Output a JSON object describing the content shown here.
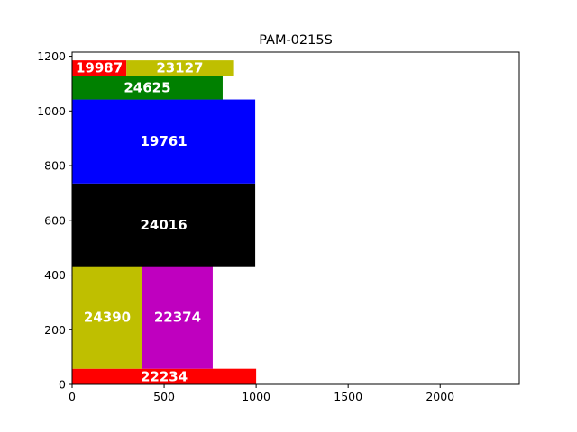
{
  "chart_data": {
    "type": "bar",
    "layout": "rectangle-packing",
    "title": "PAM-0215S",
    "xlabel": "",
    "ylabel": "",
    "xlim": [
      0,
      2430
    ],
    "ylim": [
      0,
      1215
    ],
    "x_ticks": [
      "0",
      "500",
      "1000",
      "1500",
      "2000"
    ],
    "y_ticks": [
      "0",
      "200",
      "400",
      "600",
      "800",
      "1000",
      "1200"
    ],
    "grid": false,
    "legend": "none",
    "rects": [
      {
        "label": "22234",
        "x": 0,
        "y": 0,
        "width": 1000,
        "height": 57,
        "color": "#ff0000"
      },
      {
        "label": "24390",
        "x": 0,
        "y": 57,
        "width": 382,
        "height": 378,
        "color": "#bfbf00"
      },
      {
        "label": "22374",
        "x": 382,
        "y": 57,
        "width": 382,
        "height": 378,
        "color": "#bf00bf"
      },
      {
        "label": "24016",
        "x": 0,
        "y": 429,
        "width": 995,
        "height": 306,
        "color": "#000000"
      },
      {
        "label": "19761",
        "x": 0,
        "y": 735,
        "width": 995,
        "height": 307,
        "color": "#0000ff"
      },
      {
        "label": "24625",
        "x": 0,
        "y": 1042,
        "width": 818,
        "height": 87,
        "color": "#008000"
      },
      {
        "label": "19987",
        "x": 0,
        "y": 1129,
        "width": 295,
        "height": 56,
        "color": "#ff0000"
      },
      {
        "label": "23127",
        "x": 295,
        "y": 1129,
        "width": 580,
        "height": 56,
        "color": "#bfbf00"
      }
    ]
  }
}
